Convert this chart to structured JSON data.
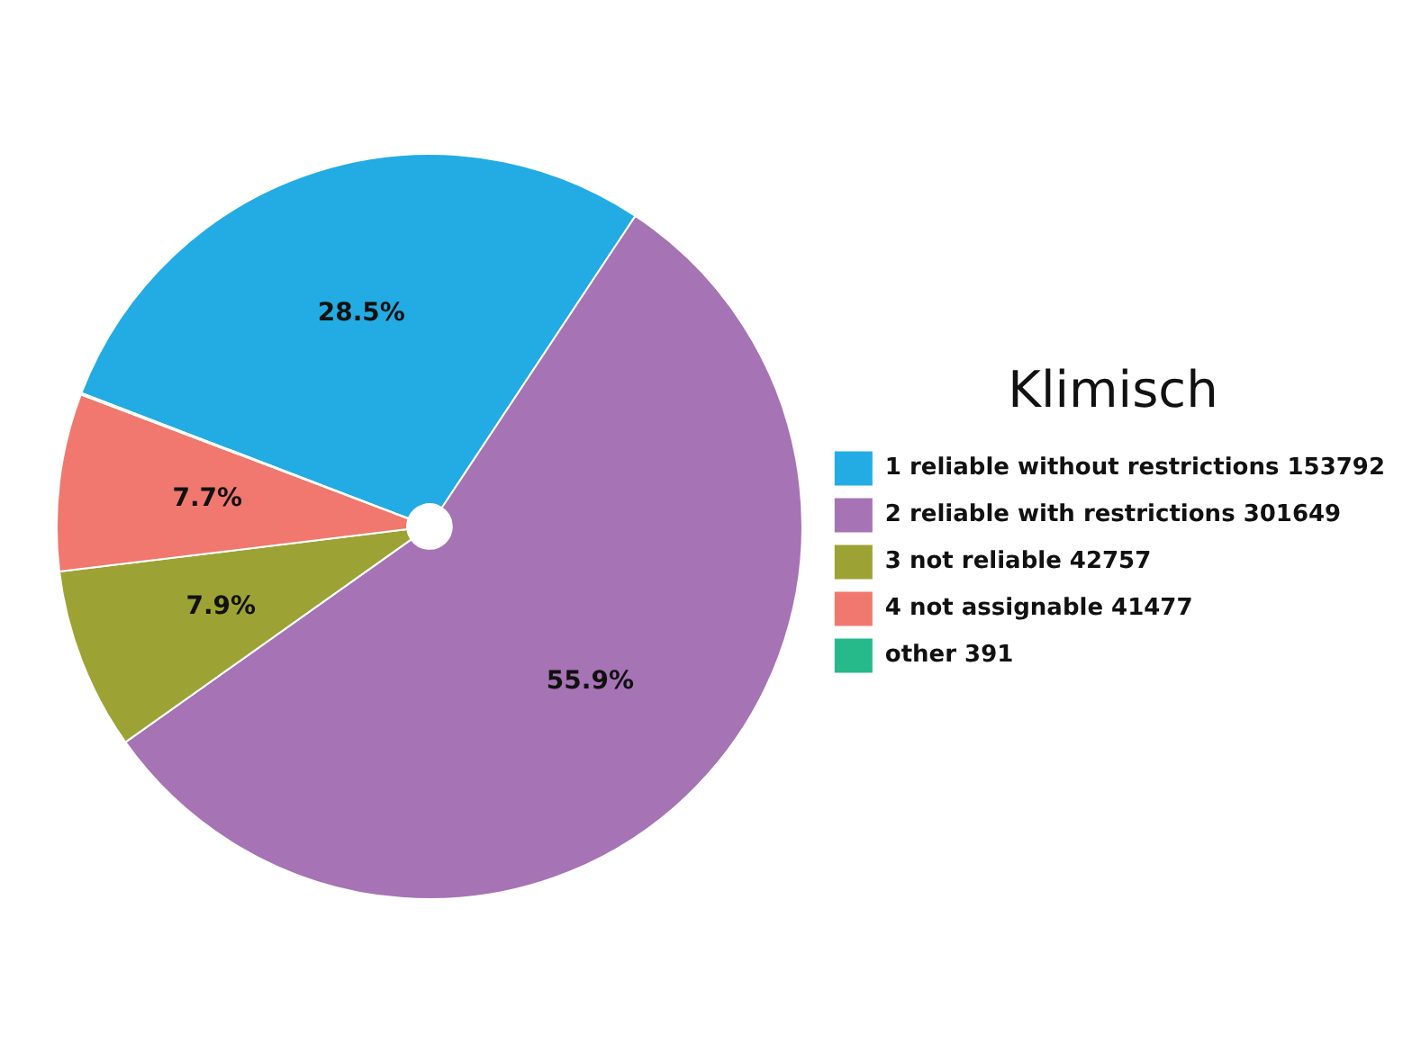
{
  "chart_data": {
    "type": "pie",
    "legend_title": "Klimisch",
    "categories": [
      "1 reliable without restrictions 153792",
      "2 reliable with restrictions 301649",
      "3 not reliable 42757",
      "4 not assignable 41477",
      "other 391"
    ],
    "values": [
      28.5,
      55.9,
      7.9,
      7.7,
      0.07
    ],
    "colors": [
      "#22ace3",
      "#a673b4",
      "#9ca334",
      "#f0786e",
      "#26b98a"
    ],
    "value_labels": [
      "28.5%",
      "55.9%",
      "7.9%",
      "7.7%",
      null
    ],
    "legend": "right"
  }
}
